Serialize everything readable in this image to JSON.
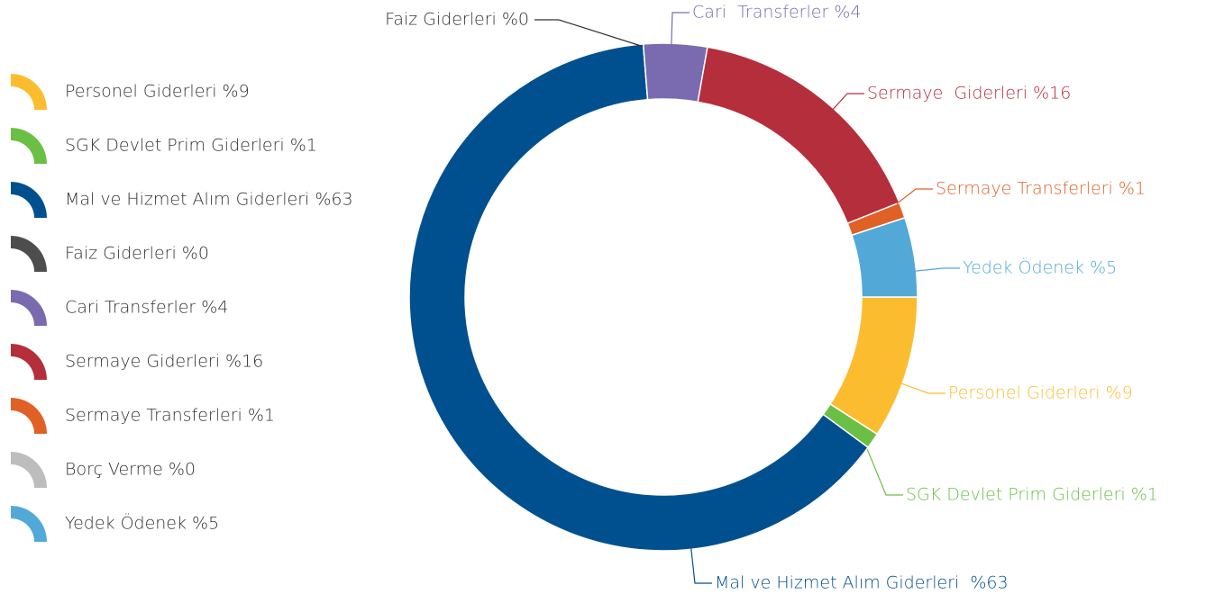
{
  "chart_data": {
    "type": "donut",
    "categories": [
      "Personel Giderleri %9",
      "SGK Devlet Prim Giderleri %1",
      "Mal ve Hizmet Alım Giderleri %63",
      "Faiz Giderleri %0",
      "Cari Transferler %4",
      "Sermaye Giderleri %16",
      "Sermaye Transferleri %1",
      "Borç Verme %0",
      "Yedek Ödenek %5"
    ],
    "values": [
      9,
      1,
      63,
      0,
      4,
      16,
      1,
      0,
      5
    ],
    "value_labels": [
      "Personel Giderleri %9",
      "SGK Devlet Prim Giderleri %1",
      "Mal ve Hizmet Alım Giderleri  %63",
      "Faiz Giderleri %0",
      "Cari  Transferler %4",
      "Sermaye  Giderleri %16",
      "Sermaye Transferleri %1",
      null,
      "Yedek Ödenek %5"
    ],
    "colors": [
      "#fbbd2f",
      "#6cbf45",
      "#00508f",
      "#4d4d4d",
      "#7a6bb0",
      "#b52e3c",
      "#e06026",
      "#bdbdbd",
      "#52a9d8"
    ]
  }
}
